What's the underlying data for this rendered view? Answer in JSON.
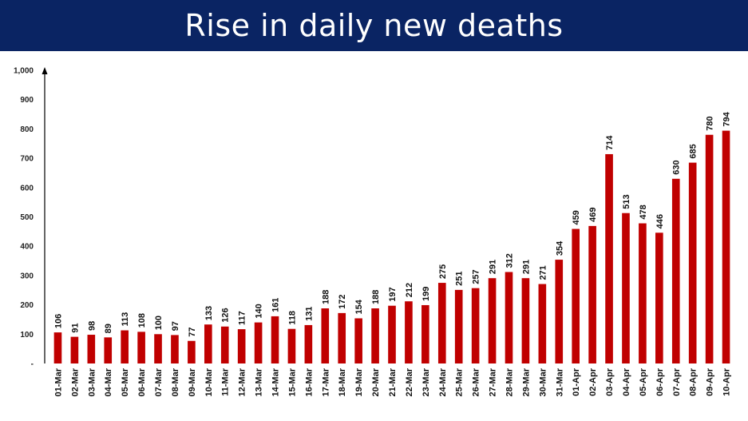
{
  "title": "Rise in daily new deaths",
  "colors": {
    "header_bg": "#0a2463",
    "bar": "#c00000"
  },
  "chart_data": {
    "type": "bar",
    "title": "Rise in daily new deaths",
    "xlabel": "",
    "ylabel": "",
    "ylim": [
      0,
      1000
    ],
    "yticks": [
      "-",
      "100",
      "200",
      "300",
      "400",
      "500",
      "600",
      "700",
      "800",
      "900",
      "1,000"
    ],
    "grid": false,
    "categories": [
      "01-Mar",
      "02-Mar",
      "03-Mar",
      "04-Mar",
      "05-Mar",
      "06-Mar",
      "07-Mar",
      "08-Mar",
      "09-Mar",
      "10-Mar",
      "11-Mar",
      "12-Mar",
      "13-Mar",
      "14-Mar",
      "15-Mar",
      "16-Mar",
      "17-Mar",
      "18-Mar",
      "19-Mar",
      "20-Mar",
      "21-Mar",
      "22-Mar",
      "23-Mar",
      "24-Mar",
      "25-Mar",
      "26-Mar",
      "27-Mar",
      "28-Mar",
      "29-Mar",
      "30-Mar",
      "31-Mar",
      "01-Apr",
      "02-Apr",
      "03-Apr",
      "04-Apr",
      "05-Apr",
      "06-Apr",
      "07-Apr",
      "08-Apr",
      "09-Apr",
      "10-Apr"
    ],
    "values": [
      106,
      91,
      98,
      89,
      113,
      108,
      100,
      97,
      77,
      133,
      126,
      117,
      140,
      161,
      118,
      131,
      188,
      172,
      154,
      188,
      197,
      212,
      199,
      275,
      251,
      257,
      291,
      312,
      291,
      271,
      354,
      459,
      469,
      714,
      513,
      478,
      446,
      630,
      685,
      780,
      794
    ]
  }
}
